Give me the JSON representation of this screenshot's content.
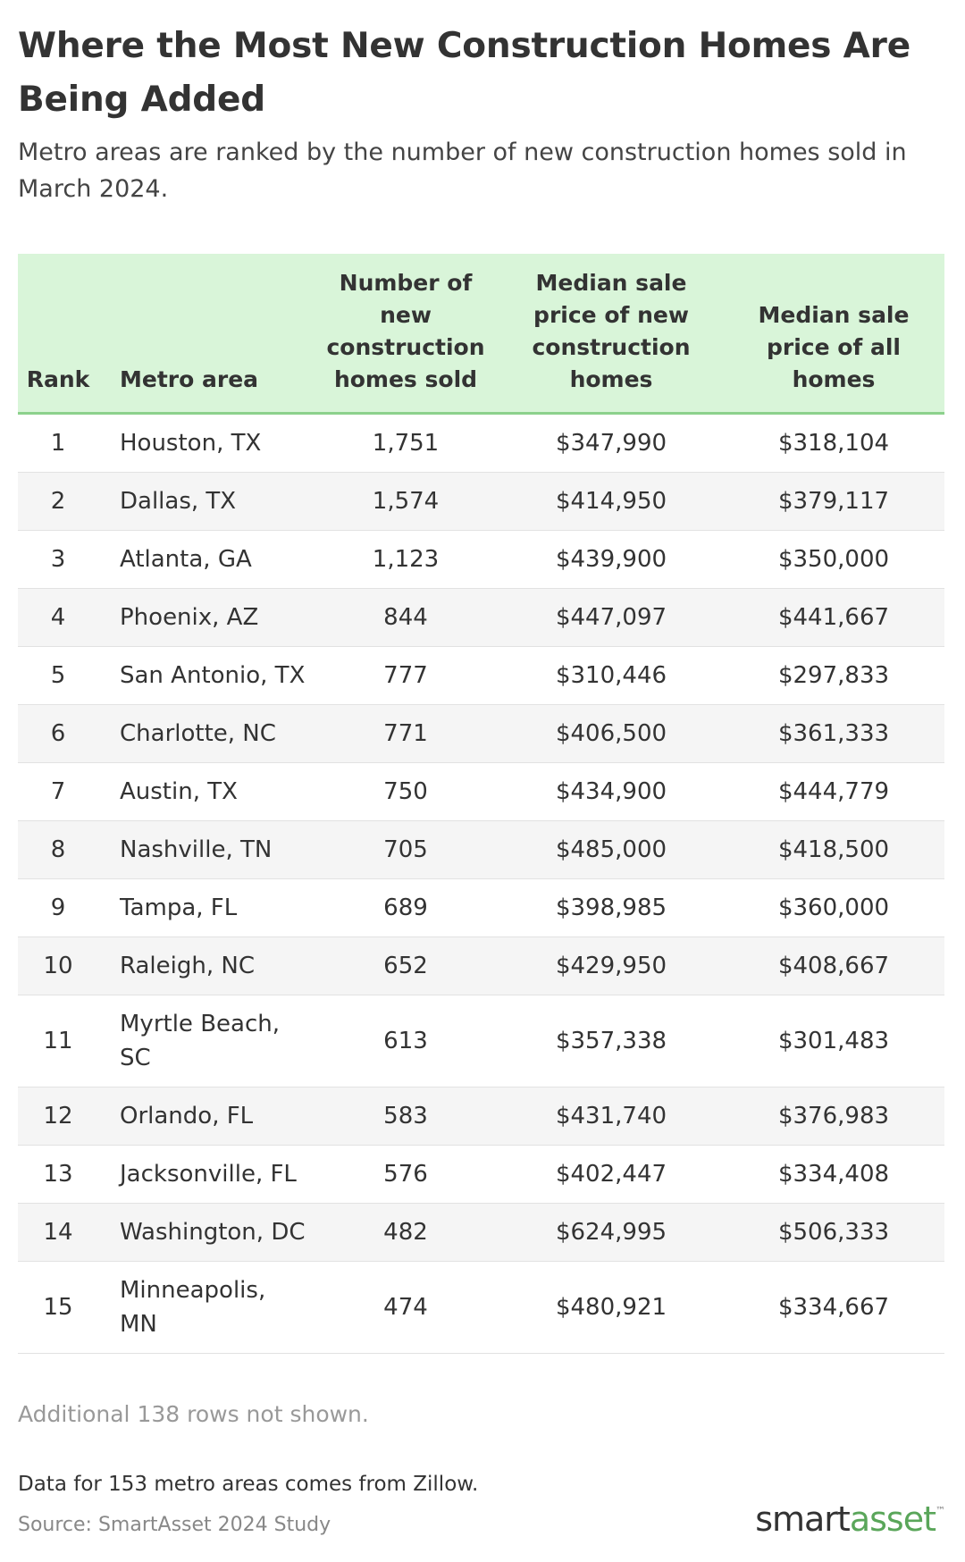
{
  "chart_data": {
    "type": "table",
    "title": "Where the Most New Construction Homes Are Being Added",
    "subtitle": "Metro areas are ranked by the number of new construction homes sold in March 2024.",
    "columns": [
      "Rank",
      "Metro area",
      "Number of new construction homes sold",
      "Median sale price of new construction homes",
      "Median sale price of all homes"
    ],
    "rows": [
      {
        "rank": "1",
        "metro": "Houston, TX",
        "sold": "1,751",
        "new_price": "$347,990",
        "all_price": "$318,104"
      },
      {
        "rank": "2",
        "metro": "Dallas, TX",
        "sold": "1,574",
        "new_price": "$414,950",
        "all_price": "$379,117"
      },
      {
        "rank": "3",
        "metro": "Atlanta, GA",
        "sold": "1,123",
        "new_price": "$439,900",
        "all_price": "$350,000"
      },
      {
        "rank": "4",
        "metro": "Phoenix, AZ",
        "sold": "844",
        "new_price": "$447,097",
        "all_price": "$441,667"
      },
      {
        "rank": "5",
        "metro": "San Antonio, TX",
        "sold": "777",
        "new_price": "$310,446",
        "all_price": "$297,833"
      },
      {
        "rank": "6",
        "metro": "Charlotte, NC",
        "sold": "771",
        "new_price": "$406,500",
        "all_price": "$361,333"
      },
      {
        "rank": "7",
        "metro": "Austin, TX",
        "sold": "750",
        "new_price": "$434,900",
        "all_price": "$444,779"
      },
      {
        "rank": "8",
        "metro": "Nashville, TN",
        "sold": "705",
        "new_price": "$485,000",
        "all_price": "$418,500"
      },
      {
        "rank": "9",
        "metro": "Tampa, FL",
        "sold": "689",
        "new_price": "$398,985",
        "all_price": "$360,000"
      },
      {
        "rank": "10",
        "metro": "Raleigh, NC",
        "sold": "652",
        "new_price": "$429,950",
        "all_price": "$408,667"
      },
      {
        "rank": "11",
        "metro": "Myrtle Beach, SC",
        "sold": "613",
        "new_price": "$357,338",
        "all_price": "$301,483"
      },
      {
        "rank": "12",
        "metro": "Orlando, FL",
        "sold": "583",
        "new_price": "$431,740",
        "all_price": "$376,983"
      },
      {
        "rank": "13",
        "metro": "Jacksonville, FL",
        "sold": "576",
        "new_price": "$402,447",
        "all_price": "$334,408"
      },
      {
        "rank": "14",
        "metro": "Washington, DC",
        "sold": "482",
        "new_price": "$624,995",
        "all_price": "$506,333"
      },
      {
        "rank": "15",
        "metro": "Minneapolis, MN",
        "sold": "474",
        "new_price": "$480,921",
        "all_price": "$334,667"
      }
    ],
    "note": "Additional 138 rows not shown.",
    "footnote": "Data for 153 metro areas comes from Zillow.",
    "source": "Source: SmartAsset 2024 Study",
    "header_color": "#d9f5d9",
    "header_border_color": "#8cd18c"
  },
  "brand": {
    "logo_part1": "smart",
    "logo_part2": "asset",
    "logo_mark": "™",
    "accent_color": "#5aa65a"
  }
}
